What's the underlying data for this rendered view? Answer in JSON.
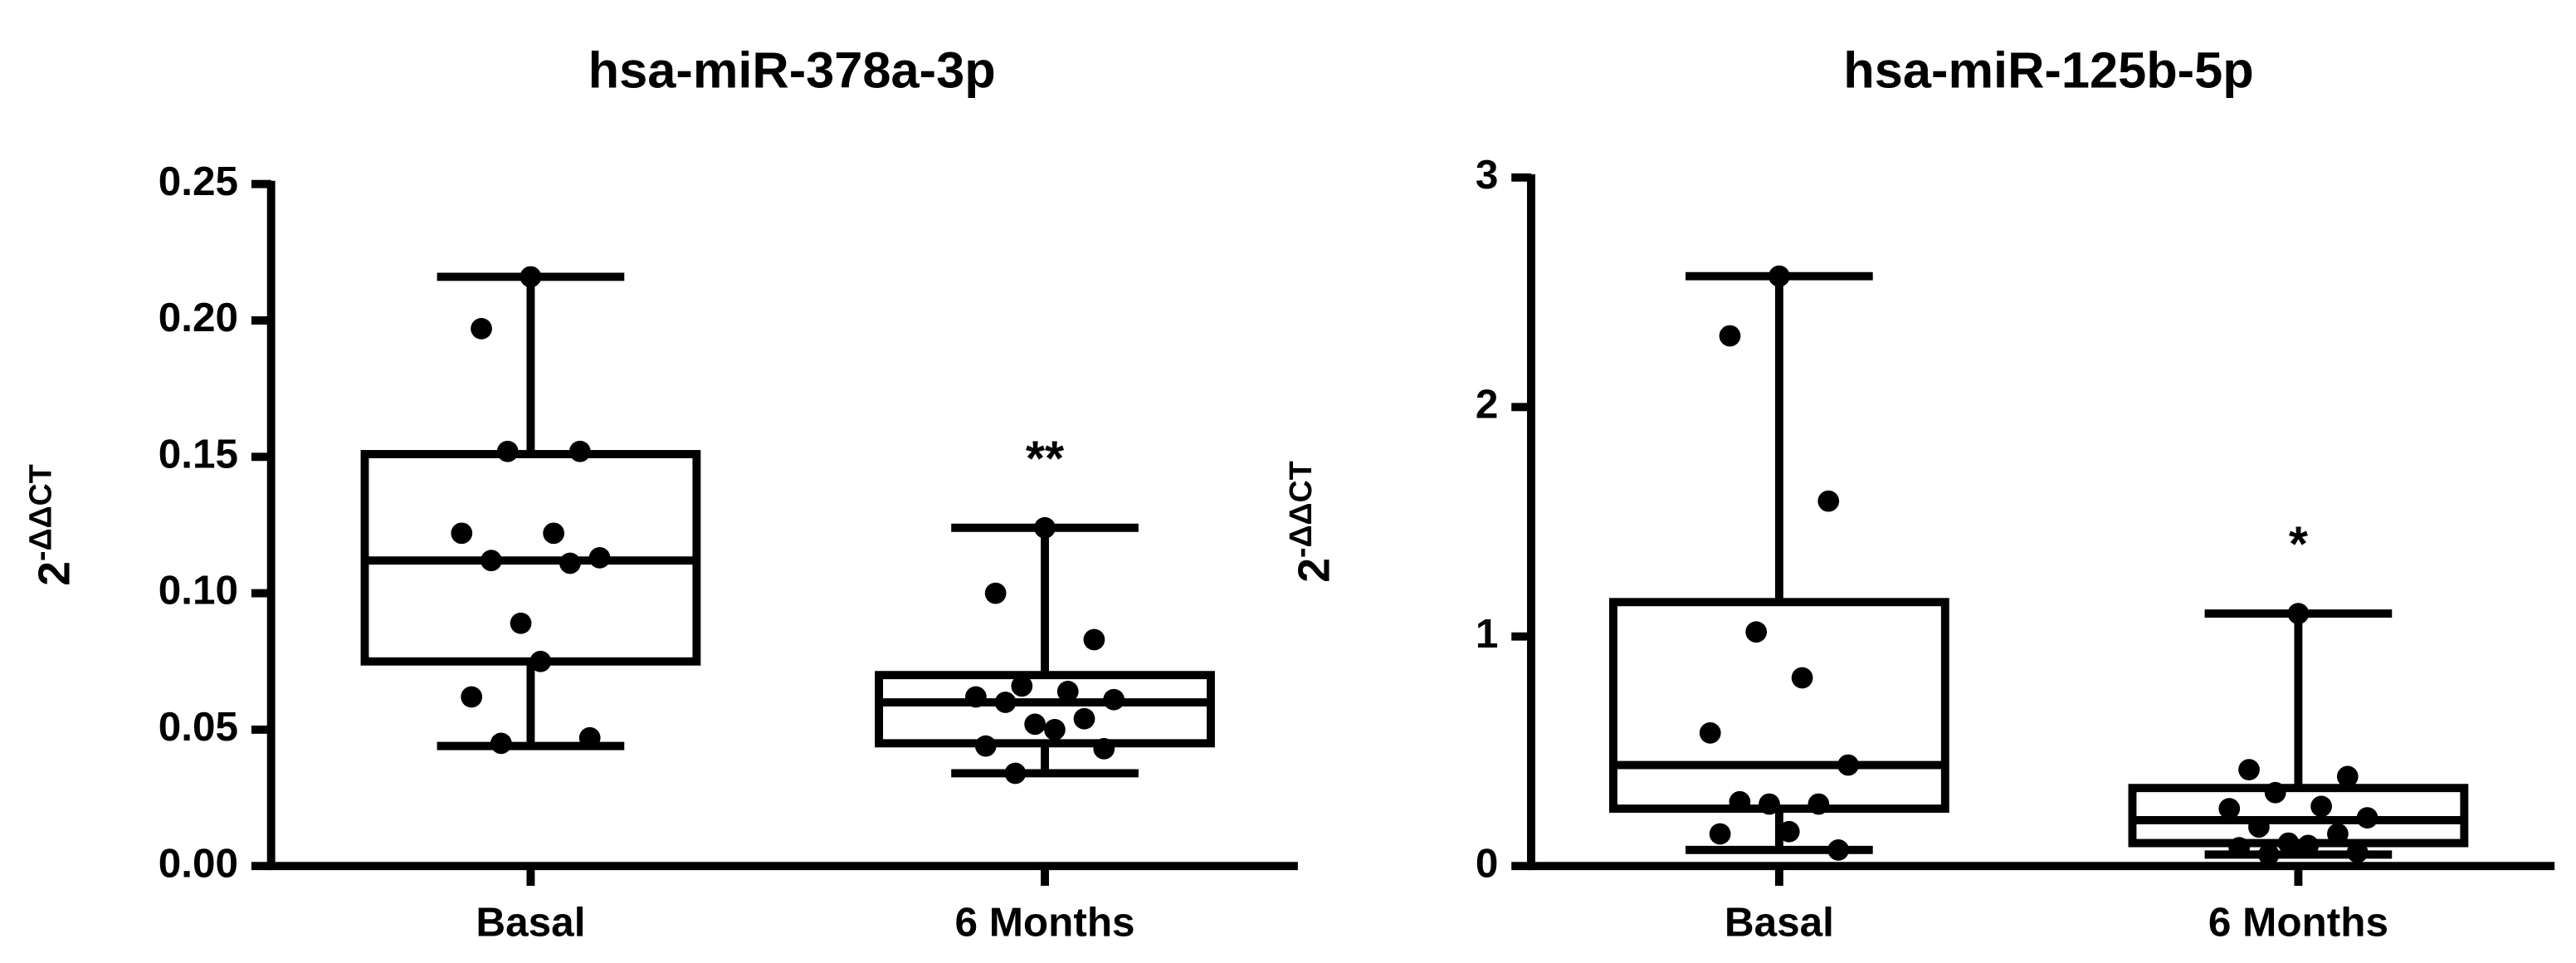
{
  "chart_data": [
    {
      "type": "box",
      "title": "hsa-miR-378a-3p",
      "ylabel": {
        "base": "2",
        "exponent": "-ΔΔCT"
      },
      "ylim": [
        0,
        0.25
      ],
      "yticks": [
        {
          "value": 0,
          "label": "0.00"
        },
        {
          "value": 0.05,
          "label": "0.05"
        },
        {
          "value": 0.1,
          "label": "0.10"
        },
        {
          "value": 0.15,
          "label": "0.15"
        },
        {
          "value": 0.2,
          "label": "0.20"
        },
        {
          "value": 0.25,
          "label": "0.25"
        }
      ],
      "categories": [
        "Basal",
        "6 Months"
      ],
      "boxes": [
        {
          "min": 0.044,
          "q1": 0.075,
          "median": 0.112,
          "q3": 0.151,
          "max": 0.216
        },
        {
          "min": 0.034,
          "q1": 0.045,
          "median": 0.06,
          "q3": 0.07,
          "max": 0.124
        }
      ],
      "points": [
        [
          0.216,
          0.197,
          0.152,
          0.152,
          0.122,
          0.122,
          0.113,
          0.112,
          0.111,
          0.089,
          0.075,
          0.062,
          0.047,
          0.045
        ],
        [
          0.124,
          0.1,
          0.083,
          0.066,
          0.064,
          0.062,
          0.061,
          0.06,
          0.054,
          0.052,
          0.05,
          0.044,
          0.043,
          0.034
        ]
      ],
      "annotation": "**",
      "color": "#000000"
    },
    {
      "type": "box",
      "title": "hsa-miR-125b-5p",
      "ylabel": {
        "base": "2",
        "exponent": "-ΔΔCT"
      },
      "ylim": [
        0,
        3
      ],
      "yticks": [
        0,
        1,
        2,
        3
      ],
      "categories": [
        "Basal",
        "6 Months"
      ],
      "boxes": [
        {
          "min": 0.07,
          "q1": 0.25,
          "median": 0.44,
          "q3": 1.15,
          "max": 2.57
        },
        {
          "min": 0.05,
          "q1": 0.1,
          "median": 0.2,
          "q3": 0.34,
          "max": 1.1
        }
      ],
      "points": [
        [
          2.57,
          2.31,
          1.59,
          1.02,
          0.82,
          0.58,
          0.44,
          0.28,
          0.27,
          0.27,
          0.15,
          0.14,
          0.07
        ],
        [
          1.1,
          0.42,
          0.39,
          0.32,
          0.26,
          0.25,
          0.21,
          0.17,
          0.14,
          0.1,
          0.09,
          0.08,
          0.06,
          0.05
        ]
      ],
      "annotation": "*",
      "color": "#000000"
    }
  ]
}
